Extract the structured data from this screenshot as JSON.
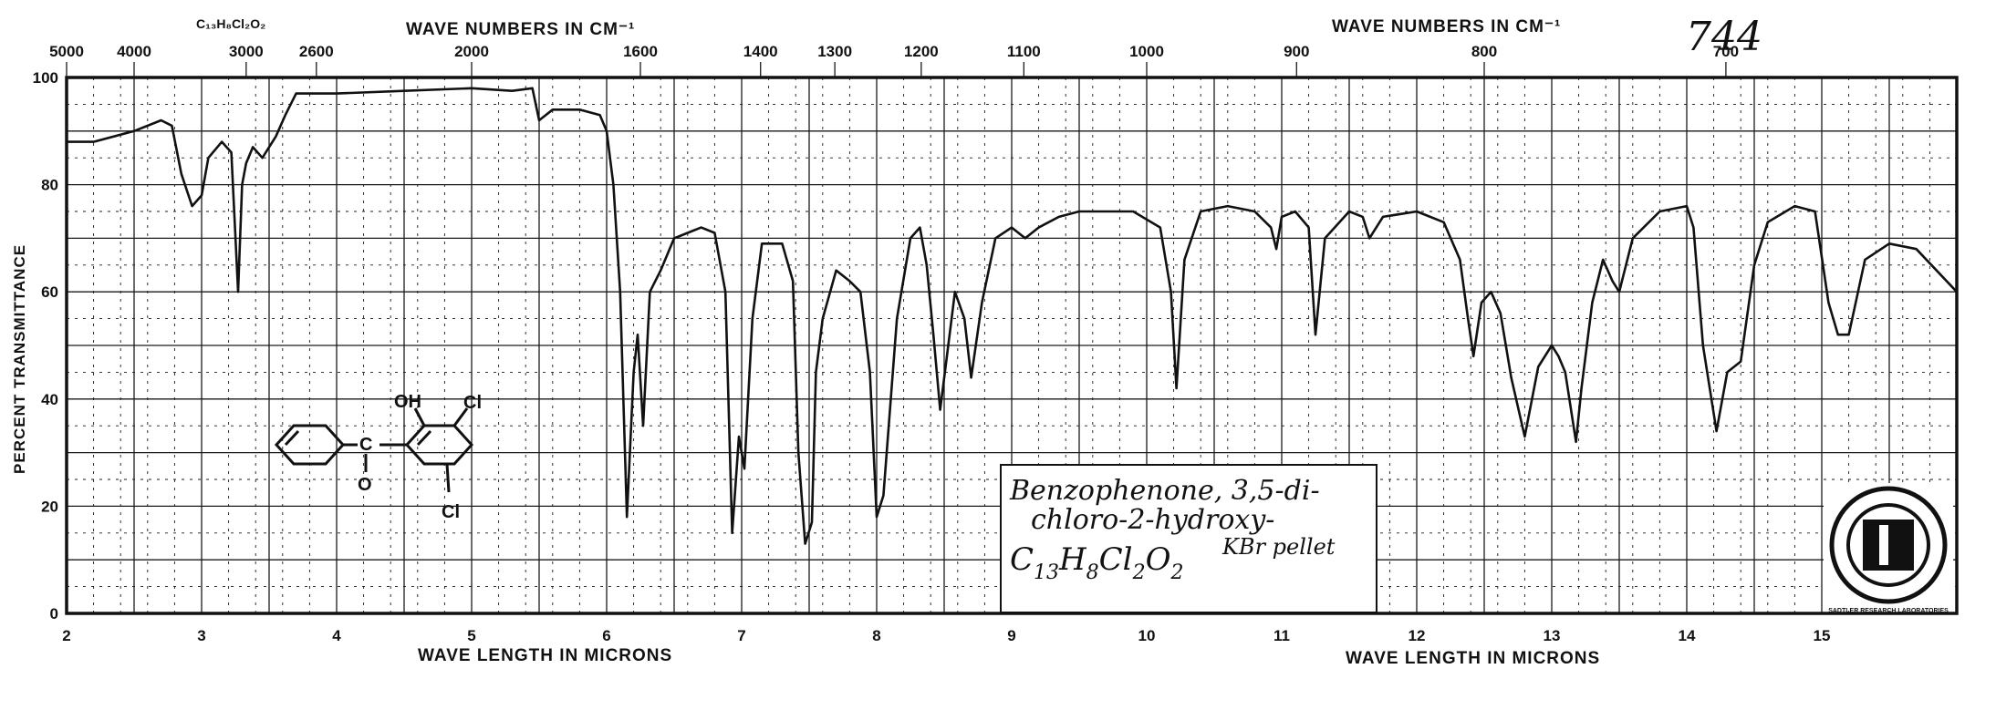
{
  "top_left_formula": "C₁₃H₈Cl₂O₂",
  "top_axis_title_left": "WAVE NUMBERS IN CM⁻¹",
  "top_axis_title_right": "WAVE NUMBERS IN CM⁻¹",
  "spectrum_number": "744",
  "bottom_axis_title_left": "WAVE LENGTH IN MICRONS",
  "bottom_axis_title_right": "WAVE LENGTH IN MICRONS",
  "y_axis_title": "PERCENT TRANSMITTANCE",
  "annotation": {
    "line1": "Benzophenone, 3,5-di-",
    "line2": "chloro-2-hydroxy-",
    "formula_C": "C",
    "formula_C_sub": "13",
    "formula_H": "H",
    "formula_H_sub": "8",
    "formula_Cl": "Cl",
    "formula_Cl_sub": "2",
    "formula_O": "O",
    "formula_O_sub": "2",
    "method": "KBr pellet"
  },
  "structure_labels": {
    "carbonyl_c": "C",
    "carbonyl_o": "O",
    "hydroxyl": "OH",
    "chloro_top": "Cl",
    "chloro_bottom": "Cl"
  },
  "logo_text": "SADTLER RESEARCH LABORATORIES",
  "chart_data": {
    "type": "line",
    "title": "",
    "xlabel": "WAVE LENGTH IN MICRONS",
    "ylabel": "PERCENT TRANSMITTANCE",
    "xlim": [
      2,
      16
    ],
    "ylim": [
      0,
      100
    ],
    "x_ticks": [
      2,
      3,
      4,
      5,
      6,
      7,
      8,
      9,
      10,
      11,
      12,
      13,
      14,
      15
    ],
    "y_ticks": [
      0,
      20,
      40,
      60,
      80,
      100
    ],
    "top_ticks": [
      {
        "label": "5000",
        "micron": 2.0
      },
      {
        "label": "4000",
        "micron": 2.5
      },
      {
        "label": "3000",
        "micron": 3.33
      },
      {
        "label": "2600",
        "micron": 3.85
      },
      {
        "label": "2000",
        "micron": 5.0
      },
      {
        "label": "1600",
        "micron": 6.25
      },
      {
        "label": "1400",
        "micron": 7.14
      },
      {
        "label": "1300",
        "micron": 7.69
      },
      {
        "label": "1200",
        "micron": 8.33
      },
      {
        "label": "1100",
        "micron": 9.09
      },
      {
        "label": "1000",
        "micron": 10.0
      },
      {
        "label": "900",
        "micron": 11.11
      },
      {
        "label": "800",
        "micron": 12.5
      },
      {
        "label": "700",
        "micron": 14.29
      }
    ],
    "grid": true,
    "series": [
      {
        "points": [
          [
            2.0,
            88
          ],
          [
            2.2,
            88
          ],
          [
            2.5,
            90
          ],
          [
            2.7,
            92
          ],
          [
            2.78,
            91
          ],
          [
            2.85,
            82
          ],
          [
            2.93,
            76
          ],
          [
            3.0,
            78
          ],
          [
            3.05,
            85
          ],
          [
            3.15,
            88
          ],
          [
            3.22,
            86
          ],
          [
            3.27,
            60
          ],
          [
            3.3,
            80
          ],
          [
            3.33,
            84
          ],
          [
            3.38,
            87
          ],
          [
            3.45,
            85
          ],
          [
            3.55,
            89
          ],
          [
            3.62,
            93
          ],
          [
            3.7,
            97
          ],
          [
            4.0,
            97
          ],
          [
            4.5,
            97.5
          ],
          [
            5.0,
            98
          ],
          [
            5.3,
            97.5
          ],
          [
            5.45,
            98
          ],
          [
            5.5,
            92
          ],
          [
            5.6,
            94
          ],
          [
            5.8,
            94
          ],
          [
            5.95,
            93
          ],
          [
            6.0,
            90
          ],
          [
            6.05,
            80
          ],
          [
            6.1,
            60
          ],
          [
            6.15,
            18
          ],
          [
            6.2,
            45
          ],
          [
            6.23,
            52
          ],
          [
            6.27,
            35
          ],
          [
            6.32,
            60
          ],
          [
            6.4,
            64
          ],
          [
            6.5,
            70
          ],
          [
            6.6,
            71
          ],
          [
            6.7,
            72
          ],
          [
            6.8,
            71
          ],
          [
            6.88,
            60
          ],
          [
            6.93,
            15
          ],
          [
            6.98,
            33
          ],
          [
            7.02,
            27
          ],
          [
            7.08,
            55
          ],
          [
            7.15,
            69
          ],
          [
            7.3,
            69
          ],
          [
            7.38,
            62
          ],
          [
            7.42,
            30
          ],
          [
            7.47,
            13
          ],
          [
            7.52,
            17
          ],
          [
            7.55,
            45
          ],
          [
            7.6,
            55
          ],
          [
            7.7,
            64
          ],
          [
            7.8,
            62
          ],
          [
            7.88,
            60
          ],
          [
            7.95,
            45
          ],
          [
            8.0,
            18
          ],
          [
            8.05,
            22
          ],
          [
            8.15,
            55
          ],
          [
            8.25,
            70
          ],
          [
            8.32,
            72
          ],
          [
            8.37,
            65
          ],
          [
            8.42,
            52
          ],
          [
            8.47,
            38
          ],
          [
            8.52,
            48
          ],
          [
            8.58,
            60
          ],
          [
            8.65,
            55
          ],
          [
            8.7,
            44
          ],
          [
            8.78,
            58
          ],
          [
            8.88,
            70
          ],
          [
            9.0,
            72
          ],
          [
            9.1,
            70
          ],
          [
            9.2,
            72
          ],
          [
            9.35,
            74
          ],
          [
            9.5,
            75
          ],
          [
            9.7,
            75
          ],
          [
            9.9,
            75
          ],
          [
            10.1,
            72
          ],
          [
            10.18,
            60
          ],
          [
            10.22,
            42
          ],
          [
            10.28,
            66
          ],
          [
            10.4,
            75
          ],
          [
            10.6,
            76
          ],
          [
            10.8,
            75
          ],
          [
            10.92,
            72
          ],
          [
            10.96,
            68
          ],
          [
            11.0,
            74
          ],
          [
            11.1,
            75
          ],
          [
            11.2,
            72
          ],
          [
            11.25,
            52
          ],
          [
            11.32,
            70
          ],
          [
            11.5,
            75
          ],
          [
            11.6,
            74
          ],
          [
            11.65,
            70
          ],
          [
            11.75,
            74
          ],
          [
            12.0,
            75
          ],
          [
            12.2,
            73
          ],
          [
            12.32,
            66
          ],
          [
            12.38,
            55
          ],
          [
            12.42,
            48
          ],
          [
            12.48,
            58
          ],
          [
            12.55,
            60
          ],
          [
            12.62,
            56
          ],
          [
            12.7,
            44
          ],
          [
            12.8,
            33
          ],
          [
            12.9,
            46
          ],
          [
            13.0,
            50
          ],
          [
            13.05,
            48
          ],
          [
            13.1,
            45
          ],
          [
            13.18,
            32
          ],
          [
            13.22,
            42
          ],
          [
            13.3,
            58
          ],
          [
            13.38,
            66
          ],
          [
            13.45,
            62
          ],
          [
            13.5,
            60
          ],
          [
            13.6,
            70
          ],
          [
            13.8,
            75
          ],
          [
            14.0,
            76
          ],
          [
            14.05,
            72
          ],
          [
            14.12,
            50
          ],
          [
            14.22,
            34
          ],
          [
            14.3,
            45
          ],
          [
            14.4,
            47
          ],
          [
            14.5,
            65
          ],
          [
            14.6,
            73
          ],
          [
            14.8,
            76
          ],
          [
            14.95,
            75
          ],
          [
            15.05,
            58
          ],
          [
            15.12,
            52
          ],
          [
            15.2,
            52
          ],
          [
            15.32,
            66
          ],
          [
            15.5,
            69
          ],
          [
            15.7,
            68
          ],
          [
            16.0,
            60
          ]
        ]
      }
    ]
  }
}
